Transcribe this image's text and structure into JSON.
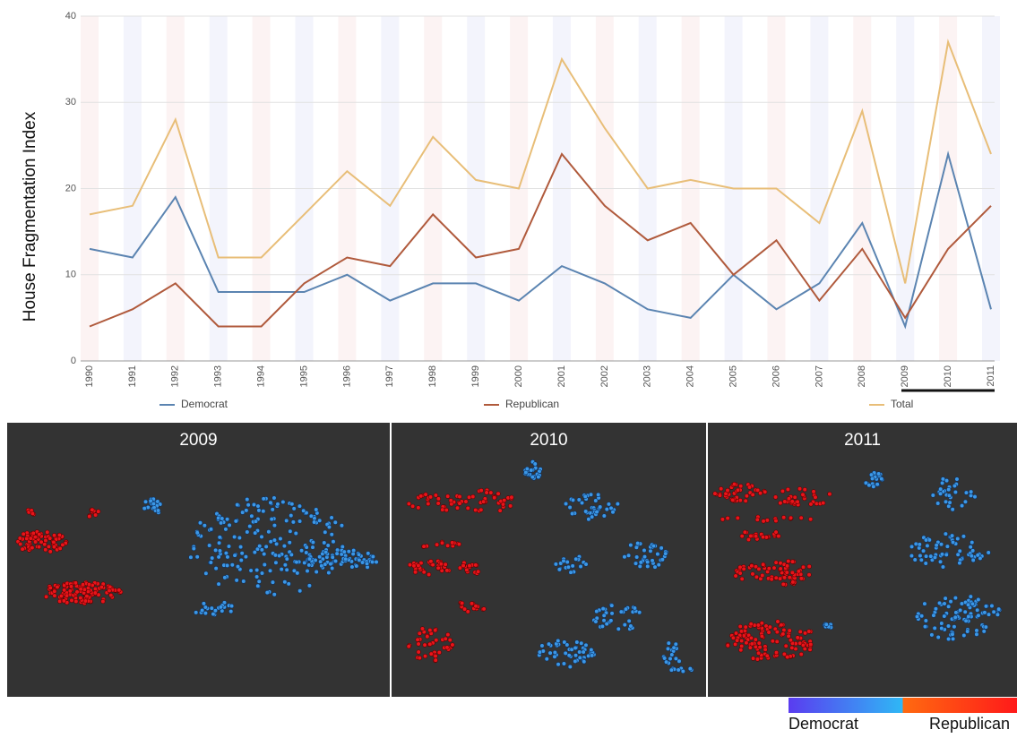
{
  "chart_data": {
    "type": "line",
    "y_label": "House Fragmentation Index",
    "categories": [
      "1990",
      "1991",
      "1992",
      "1993",
      "1994",
      "1995",
      "1996",
      "1997",
      "1998",
      "1999",
      "2000",
      "2001",
      "2002",
      "2003",
      "2004",
      "2005",
      "2006",
      "2007",
      "2008",
      "2009",
      "2010",
      "2011"
    ],
    "series": [
      {
        "name": "Democrat",
        "color": "#5b84b1",
        "values": [
          13,
          12,
          19,
          8,
          8,
          8,
          10,
          7,
          9,
          9,
          7,
          11,
          9,
          6,
          5,
          10,
          6,
          9,
          16,
          4,
          24,
          6
        ]
      },
      {
        "name": "Republican",
        "color": "#b05a3c",
        "values": [
          4,
          6,
          9,
          4,
          4,
          9,
          12,
          11,
          17,
          12,
          13,
          24,
          18,
          14,
          16,
          10,
          14,
          7,
          13,
          5,
          13,
          18
        ]
      },
      {
        "name": "Total",
        "color": "#e8be78",
        "values": [
          17,
          18,
          28,
          12,
          12,
          17,
          22,
          18,
          26,
          21,
          20,
          35,
          27,
          20,
          21,
          20,
          20,
          16,
          29,
          9,
          37,
          24
        ]
      }
    ],
    "ylim": [
      0,
      40
    ],
    "yticks": [
      0,
      10,
      20,
      30,
      40
    ],
    "grid": true
  },
  "network_panels": [
    "2009",
    "2010",
    "2011"
  ],
  "color_scale": {
    "left": "Democrat",
    "right": "Republican"
  }
}
